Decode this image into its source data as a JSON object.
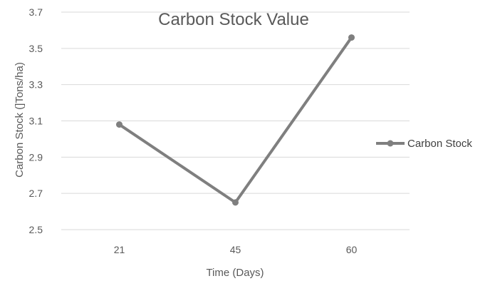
{
  "chart_data": {
    "type": "line",
    "title": "Carbon Stock Value",
    "xlabel": "Time (Days)",
    "ylabel": "Carbon Stock (]Tons/ha)",
    "categories": [
      "21",
      "45",
      "60"
    ],
    "series": [
      {
        "name": "Carbon Stock",
        "values": [
          3.08,
          2.65,
          3.56
        ],
        "color": "#7f7f7f"
      }
    ],
    "ylim": [
      2.5,
      3.7
    ],
    "yticks": [
      "2.5",
      "2.7",
      "2.9",
      "3.1",
      "3.3",
      "3.5",
      "3.7"
    ],
    "grid": true,
    "legend_position": "right"
  }
}
